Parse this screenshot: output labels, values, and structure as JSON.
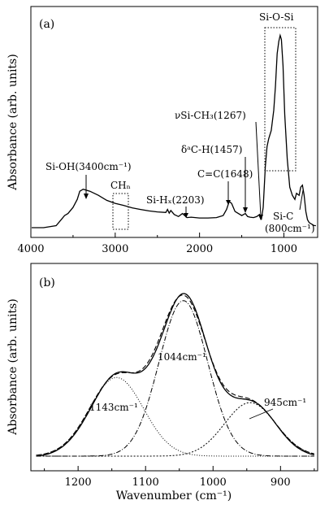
{
  "chart_data": [
    {
      "type": "line",
      "panel_label": "(a)",
      "ylabel": "Absorbance (arb. units)",
      "xlim": [
        4000,
        600
      ],
      "x_reversed": true,
      "xticks": [
        4000,
        3000,
        2000,
        1000
      ],
      "tick_labels": [
        "4000",
        "3000",
        "2000",
        "1000"
      ],
      "series": [
        {
          "x": [
            3990,
            3850,
            3700,
            3640,
            3600,
            3560,
            3500,
            3450,
            3420,
            3380,
            3300,
            3200,
            3100,
            3000,
            2900,
            2800,
            2700,
            2600,
            2500,
            2400,
            2380,
            2360,
            2340,
            2300,
            2250,
            2203,
            2150,
            2100,
            2000,
            1900,
            1800,
            1720,
            1680,
            1648,
            1620,
            1580,
            1500,
            1457,
            1430,
            1400,
            1360,
            1320,
            1290,
            1267,
            1245,
            1220,
            1200,
            1180,
            1150,
            1120,
            1100,
            1080,
            1060,
            1044,
            1030,
            1010,
            990,
            960,
            930,
            900,
            870,
            850,
            820,
            800,
            780,
            760,
            740,
            720,
            700,
            680,
            660,
            640,
            620
          ],
          "y": [
            0.02,
            0.02,
            0.03,
            0.06,
            0.08,
            0.09,
            0.12,
            0.16,
            0.2,
            0.21,
            0.2,
            0.18,
            0.155,
            0.14,
            0.13,
            0.118,
            0.11,
            0.103,
            0.098,
            0.095,
            0.11,
            0.092,
            0.105,
            0.085,
            0.075,
            0.09,
            0.07,
            0.072,
            0.068,
            0.068,
            0.07,
            0.08,
            0.11,
            0.15,
            0.14,
            0.1,
            0.08,
            0.09,
            0.075,
            0.072,
            0.07,
            0.075,
            0.085,
            0.06,
            0.12,
            0.32,
            0.42,
            0.46,
            0.5,
            0.6,
            0.72,
            0.88,
            0.94,
            0.97,
            0.95,
            0.82,
            0.58,
            0.36,
            0.22,
            0.18,
            0.16,
            0.19,
            0.18,
            0.22,
            0.23,
            0.18,
            0.1,
            0.06,
            0.045,
            0.04,
            0.035,
            0.03,
            0.03
          ]
        }
      ],
      "annotations": [
        {
          "text": "Si-OH(3400cm⁻¹)"
        },
        {
          "text": "CHₙ"
        },
        {
          "text": "Si-Hₓ(2203)"
        },
        {
          "text": "C=C(1648)"
        },
        {
          "text": "δᵃC-H(1457)"
        },
        {
          "text": "νSi-CH₃(1267)"
        },
        {
          "text": "Si-O-Si"
        },
        {
          "text": "Si-C"
        },
        {
          "text": "(800cm⁻¹)"
        }
      ]
    },
    {
      "type": "line",
      "panel_label": "(b)",
      "xlabel": "Wavenumber (cm⁻¹)",
      "ylabel": "Absorbance (arb. units)",
      "xlim": [
        1270,
        845
      ],
      "x_reversed": true,
      "xticks": [
        1200,
        1100,
        1000,
        900
      ],
      "tick_labels": [
        "1200",
        "1100",
        "1000",
        "900"
      ],
      "ylim": [
        0,
        1.05
      ],
      "peaks": [
        {
          "label": "1143cm⁻¹",
          "center": 1143,
          "amplitude": 0.47,
          "width": 40
        },
        {
          "label": "1044cm⁻¹",
          "center": 1044,
          "amplitude": 0.93,
          "width": 36
        },
        {
          "label": "945cm⁻¹",
          "center": 945,
          "amplitude": 0.32,
          "width": 38
        }
      ],
      "series": [
        {
          "style": "solid",
          "role": "measured"
        },
        {
          "style": "dashed",
          "role": "fit-sum"
        },
        {
          "style": "dotted",
          "role": "peak-1143"
        },
        {
          "style": "dash-dot",
          "role": "peak-1044"
        },
        {
          "style": "short-dash",
          "role": "peak-945"
        }
      ]
    }
  ]
}
